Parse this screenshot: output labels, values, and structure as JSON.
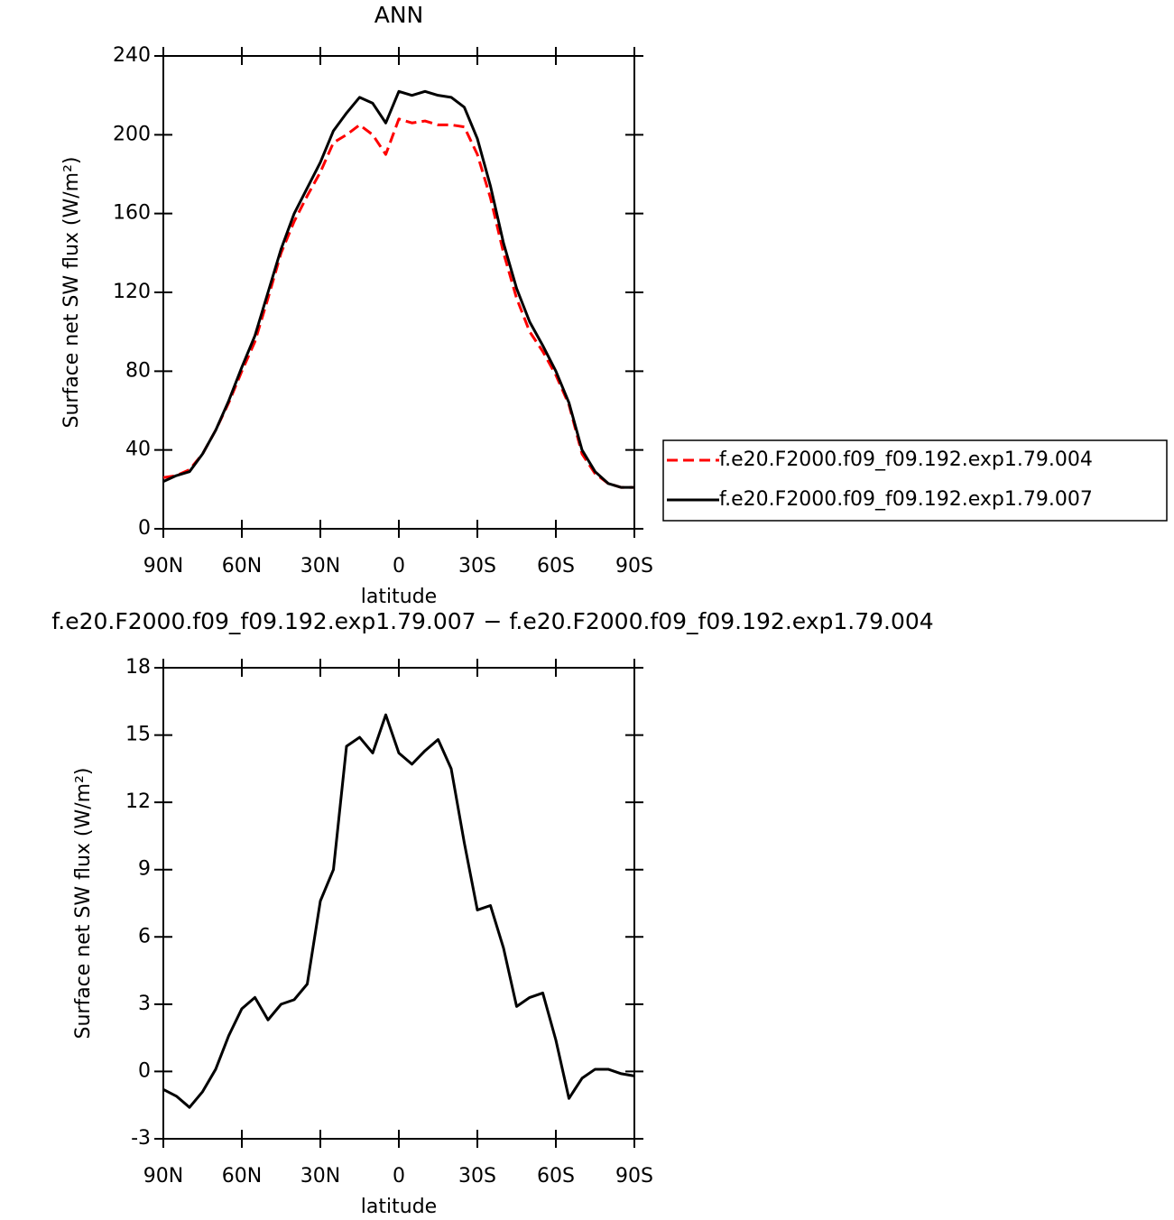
{
  "chart_data": [
    {
      "type": "line",
      "title": "ANN",
      "xlabel": "latitude",
      "ylabel": "Surface net SW flux (W/m²)",
      "x": [
        90,
        85,
        80,
        75,
        70,
        65,
        60,
        55,
        50,
        45,
        40,
        35,
        30,
        25,
        20,
        15,
        10,
        5,
        0,
        -5,
        -10,
        -15,
        -20,
        -25,
        -30,
        -35,
        -40,
        -45,
        -50,
        -55,
        -60,
        -65,
        -70,
        -75,
        -80,
        -85,
        -90
      ],
      "xlim": [
        90,
        -90
      ],
      "xticks": [
        {
          "value": 90,
          "label": "90N"
        },
        {
          "value": 60,
          "label": "60N"
        },
        {
          "value": 30,
          "label": "30N"
        },
        0,
        {
          "value": -30,
          "label": "30S"
        },
        {
          "value": -60,
          "label": "60S"
        },
        {
          "value": -90,
          "label": "90S"
        }
      ],
      "ylim": [
        0,
        240
      ],
      "yticks": [
        0,
        40,
        80,
        120,
        160,
        200,
        240
      ],
      "legend": "right",
      "series": [
        {
          "name": "f.e20.F2000.f09_f09.192.exp1.79.004",
          "color": "#ff0000",
          "linestyle": "dashed",
          "values": [
            26,
            27,
            30,
            38,
            50,
            64,
            80,
            95,
            117,
            140,
            156,
            169,
            181,
            196,
            200,
            205,
            200,
            190,
            208,
            206,
            207,
            205,
            205,
            204,
            190,
            168,
            140,
            117,
            100,
            90,
            78,
            63,
            38,
            28,
            23,
            21,
            21
          ]
        },
        {
          "name": "f.e20.F2000.f09_f09.192.exp1.79.007",
          "color": "#000000",
          "linestyle": "solid",
          "values": [
            24,
            27,
            29,
            38,
            50,
            65,
            82,
            98,
            120,
            142,
            160,
            173,
            186,
            202,
            211,
            219,
            216,
            206,
            222,
            220,
            222,
            220,
            219,
            214,
            198,
            174,
            145,
            122,
            105,
            93,
            80,
            64,
            40,
            29,
            23,
            21,
            21
          ]
        }
      ]
    },
    {
      "type": "line",
      "title": "f.e20.F2000.f09_f09.192.exp1.79.007 − f.e20.F2000.f09_f09.192.exp1.79.004",
      "xlabel": "latitude",
      "ylabel": "Surface net SW flux (W/m²)",
      "x": [
        90,
        85,
        80,
        75,
        70,
        65,
        60,
        55,
        50,
        45,
        40,
        35,
        30,
        25,
        20,
        15,
        10,
        5,
        0,
        -5,
        -10,
        -15,
        -20,
        -25,
        -30,
        -35,
        -40,
        -45,
        -50,
        -55,
        -60,
        -65,
        -70,
        -75,
        -80,
        -85,
        -90
      ],
      "xlim": [
        90,
        -90
      ],
      "xticks": [
        {
          "value": 90,
          "label": "90N"
        },
        {
          "value": 60,
          "label": "60N"
        },
        {
          "value": 30,
          "label": "30N"
        },
        0,
        {
          "value": -30,
          "label": "30S"
        },
        {
          "value": -60,
          "label": "60S"
        },
        {
          "value": -90,
          "label": "90S"
        }
      ],
      "ylim": [
        -3,
        18
      ],
      "yticks": [
        -3,
        0,
        3,
        6,
        9,
        12,
        15,
        18
      ],
      "series": [
        {
          "color": "#000000",
          "linestyle": "solid",
          "values": [
            -0.8,
            -1.1,
            -1.6,
            -0.9,
            0.1,
            1.6,
            2.8,
            3.3,
            2.3,
            3.0,
            3.2,
            3.9,
            7.6,
            9.0,
            14.5,
            14.9,
            14.2,
            15.9,
            14.2,
            13.7,
            14.3,
            14.8,
            13.5,
            10.2,
            7.2,
            7.4,
            5.5,
            2.9,
            3.3,
            3.5,
            1.4,
            -1.2,
            -0.3,
            0.1,
            0.1,
            -0.1,
            -0.2
          ]
        }
      ]
    }
  ]
}
